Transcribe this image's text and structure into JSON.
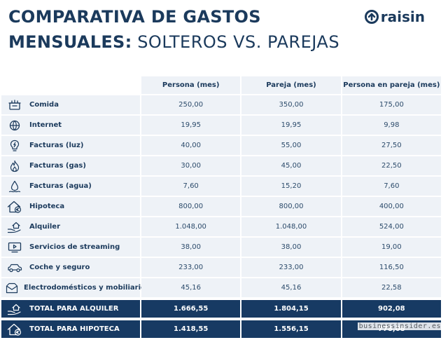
{
  "title": {
    "line1": "COMPARATIVA DE GASTOS",
    "line2_bold": "MENSUALES:",
    "line2_light": "SOLTEROS VS. PAREJAS"
  },
  "brand": {
    "name": "raisin",
    "color": "#1b3a5c"
  },
  "columns": [
    "Persona (mes)",
    "Pareja (mes)",
    "Persona en pareja (mes)"
  ],
  "rows": [
    {
      "icon": "food-box-icon",
      "label": "Comida",
      "values": [
        "250,00",
        "350,00",
        "175,00"
      ]
    },
    {
      "icon": "globe-icon",
      "label": "Internet",
      "values": [
        "19,95",
        "19,95",
        "9,98"
      ]
    },
    {
      "icon": "lightbulb-icon",
      "label": "Facturas (luz)",
      "values": [
        "40,00",
        "55,00",
        "27,50"
      ]
    },
    {
      "icon": "flame-icon",
      "label": "Facturas (gas)",
      "values": [
        "30,00",
        "45,00",
        "22,50"
      ]
    },
    {
      "icon": "water-drop-icon",
      "label": "Facturas (agua)",
      "values": [
        "7,60",
        "15,20",
        "7,60"
      ]
    },
    {
      "icon": "house-euro-icon",
      "label": "Hipoteca",
      "values": [
        "800,00",
        "800,00",
        "400,00"
      ]
    },
    {
      "icon": "hand-house-icon",
      "label": "Alquiler",
      "values": [
        "1.048,00",
        "1.048,00",
        "524,00"
      ]
    },
    {
      "icon": "tv-play-icon",
      "label": "Servicios de streaming",
      "values": [
        "38,00",
        "38,00",
        "19,00"
      ]
    },
    {
      "icon": "car-icon",
      "label": "Coche y seguro",
      "values": [
        "233,00",
        "233,00",
        "116,50"
      ]
    },
    {
      "icon": "appliance-icon",
      "label": "Electrodomésticos y mobiliario",
      "values": [
        "45,16",
        "45,16",
        "22,58"
      ]
    }
  ],
  "totals": [
    {
      "icon": "hand-house-icon",
      "label": "TOTAL PARA ALQUILER",
      "values": [
        "1.666,55",
        "1.804,15",
        "902,08"
      ]
    },
    {
      "icon": "house-euro-icon",
      "label": "TOTAL PARA HIPOTECA",
      "values": [
        "1.418,55",
        "1.556,15",
        "778,08"
      ]
    }
  ],
  "watermark": "businessinsider.es",
  "colors": {
    "header_bg": "#eef2f7",
    "total_bg": "#173a63",
    "text": "#1b3a5c"
  }
}
